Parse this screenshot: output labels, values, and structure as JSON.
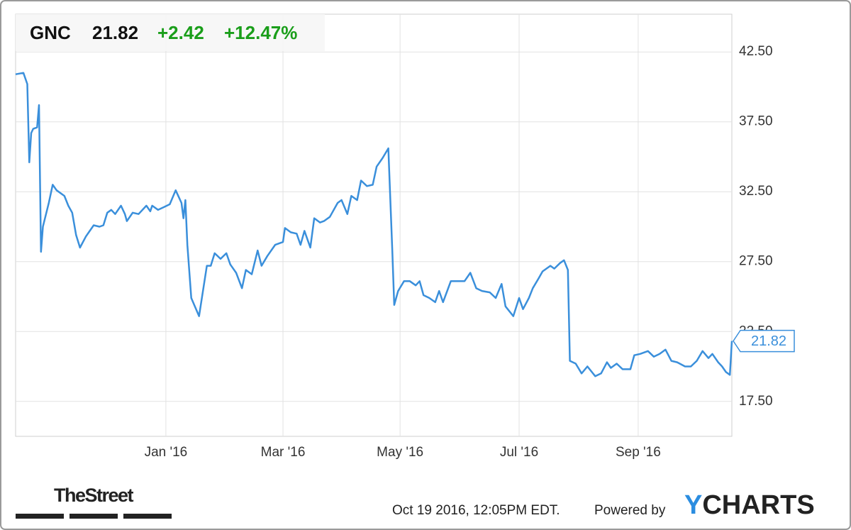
{
  "chart_data": {
    "type": "line",
    "header": {
      "ticker": "GNC",
      "change": "+2.42",
      "change_pct": "+12.47%"
    },
    "x": [
      0,
      4,
      6,
      7,
      8,
      9,
      11,
      12,
      13,
      14,
      17,
      19,
      21,
      25,
      27,
      29,
      31,
      33,
      36,
      38,
      40,
      43,
      45,
      47,
      49,
      51,
      54,
      56,
      57,
      60,
      63,
      67,
      69,
      70,
      73,
      76,
      79,
      82,
      85,
      86,
      87,
      88,
      90,
      94,
      96,
      98,
      100,
      102,
      105,
      108,
      110,
      113,
      116,
      118,
      121,
      124,
      126,
      129,
      133,
      137,
      138,
      141,
      144,
      146,
      148,
      151,
      153,
      156,
      158,
      161,
      165,
      167,
      170,
      172,
      175,
      177,
      180,
      183,
      185,
      188,
      191,
      193,
      194,
      196,
      199,
      202,
      205,
      207,
      209,
      212,
      215,
      217,
      219,
      223,
      227,
      230,
      233,
      236,
      239,
      243,
      246,
      249,
      251,
      255,
      258,
      260,
      263,
      265,
      268,
      270,
      274,
      276,
      279,
      281,
      283,
      284,
      287,
      290,
      293,
      297,
      300,
      303,
      305,
      308,
      311,
      315,
      317,
      320,
      324,
      327,
      330,
      333,
      336,
      339,
      343,
      346,
      349,
      352,
      355,
      357,
      360,
      362,
      364,
      366,
      367
    ],
    "series": [
      {
        "name": "GNC",
        "color": "#3a8fdb",
        "values": [
          40.9,
          41.0,
          40.2,
          34.6,
          36.7,
          37.0,
          37.1,
          38.7,
          28.2,
          30.0,
          31.7,
          33.0,
          32.6,
          32.2,
          31.5,
          31.0,
          29.4,
          28.5,
          29.3,
          29.7,
          30.1,
          30.0,
          30.1,
          31.0,
          31.2,
          30.9,
          31.5,
          30.9,
          30.4,
          31.0,
          30.9,
          31.5,
          31.1,
          31.5,
          31.2,
          31.4,
          31.6,
          32.6,
          31.7,
          30.6,
          31.9,
          28.7,
          24.9,
          23.6,
          25.4,
          27.2,
          27.2,
          28.1,
          27.7,
          28.1,
          27.3,
          26.7,
          25.6,
          26.9,
          26.6,
          28.3,
          27.2,
          27.9,
          28.7,
          28.9,
          29.9,
          29.6,
          29.5,
          28.7,
          29.7,
          28.5,
          30.6,
          30.3,
          30.4,
          30.7,
          31.7,
          31.9,
          30.9,
          32.2,
          31.9,
          33.3,
          32.9,
          33.0,
          34.3,
          34.9,
          35.6,
          28.4,
          24.4,
          25.4,
          26.1,
          26.1,
          25.8,
          26.1,
          25.1,
          24.9,
          24.6,
          25.4,
          24.6,
          26.1,
          26.1,
          26.1,
          26.7,
          25.6,
          25.4,
          25.3,
          24.9,
          25.9,
          24.3,
          23.6,
          24.9,
          24.1,
          24.9,
          25.6,
          26.3,
          26.8,
          27.2,
          27.0,
          27.4,
          27.6,
          26.9,
          20.4,
          20.2,
          19.5,
          20.0,
          19.3,
          19.5,
          20.3,
          19.9,
          20.2,
          19.8,
          19.8,
          20.8,
          20.9,
          21.1,
          20.7,
          20.9,
          21.2,
          20.4,
          20.3,
          20.0,
          20.0,
          20.4,
          21.1,
          20.6,
          20.9,
          20.3,
          20.0,
          19.6,
          19.4,
          21.82
        ]
      }
    ],
    "xlim": [
      0,
      367
    ],
    "xticks": [
      {
        "value": 77,
        "label": "Jan '16"
      },
      {
        "value": 137,
        "label": "Mar '16"
      },
      {
        "value": 197,
        "label": "May '16"
      },
      {
        "value": 258,
        "label": "Jul '16"
      },
      {
        "value": 319,
        "label": "Sep '16"
      }
    ],
    "ylim": [
      15,
      45.2
    ],
    "yticks": [
      {
        "value": 17.5,
        "label": "17.50"
      },
      {
        "value": 22.5,
        "label": "22.50"
      },
      {
        "value": 27.5,
        "label": "27.50"
      },
      {
        "value": 32.5,
        "label": "32.50"
      },
      {
        "value": 37.5,
        "label": "37.50"
      },
      {
        "value": 42.5,
        "label": "42.50"
      }
    ],
    "grid": true,
    "footer": {
      "source": "TheStreet",
      "timestamp": "Oct 19 2016, 12:05PM EDT.",
      "powered": "Powered by",
      "brand": "YCHARTS"
    }
  }
}
